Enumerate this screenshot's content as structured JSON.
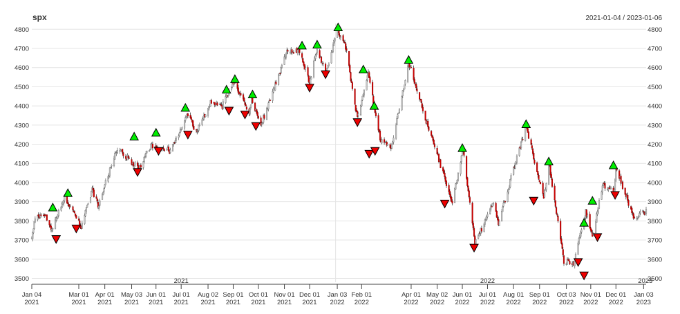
{
  "chart_data": {
    "type": "candlestick",
    "title": "spx",
    "date_range_label": "2021-01-04 / 2023-01-06",
    "ylim": [
      3480,
      4830
    ],
    "y_ticks": [
      3500,
      3600,
      3700,
      3800,
      3900,
      4000,
      4100,
      4200,
      4300,
      4400,
      4500,
      4600,
      4700,
      4800
    ],
    "y_tick_labels": [
      "3500",
      "3600",
      "3700",
      "3800",
      "3900",
      "4000",
      "4100",
      "4200",
      "4300",
      "4400",
      "4500",
      "4600",
      "4700",
      "4800"
    ],
    "x_range": [
      "2021-01-04",
      "2023-01-06"
    ],
    "x_ticks": [
      {
        "date": "2021-01-04",
        "line1": "Jan 04",
        "line2": "2021"
      },
      {
        "date": "2021-03-01",
        "line1": "Mar 01",
        "line2": "2021"
      },
      {
        "date": "2021-04-01",
        "line1": "Apr 01",
        "line2": "2021"
      },
      {
        "date": "2021-05-03",
        "line1": "May 03",
        "line2": "2021"
      },
      {
        "date": "2021-06-01",
        "line1": "Jun 01",
        "line2": "2021"
      },
      {
        "date": "2021-07-01",
        "line1": "Jul 01",
        "line2": "2021"
      },
      {
        "date": "2021-08-02",
        "line1": "Aug 02",
        "line2": "2021"
      },
      {
        "date": "2021-09-01",
        "line1": "Sep 01",
        "line2": "2021"
      },
      {
        "date": "2021-10-01",
        "line1": "Oct 01",
        "line2": "2021"
      },
      {
        "date": "2021-11-01",
        "line1": "Nov 01",
        "line2": "2021"
      },
      {
        "date": "2021-12-01",
        "line1": "Dec 01",
        "line2": "2021"
      },
      {
        "date": "2022-01-03",
        "line1": "Jan 03",
        "line2": "2022"
      },
      {
        "date": "2022-02-01",
        "line1": "Feb 01",
        "line2": "2022"
      },
      {
        "date": "2022-04-01",
        "line1": "Apr 01",
        "line2": "2022"
      },
      {
        "date": "2022-05-02",
        "line1": "May 02",
        "line2": "2022"
      },
      {
        "date": "2022-06-01",
        "line1": "Jun 01",
        "line2": "2022"
      },
      {
        "date": "2022-07-01",
        "line1": "Jul 01",
        "line2": "2022"
      },
      {
        "date": "2022-08-01",
        "line1": "Aug 01",
        "line2": "2022"
      },
      {
        "date": "2022-09-01",
        "line1": "Sep 01",
        "line2": "2022"
      },
      {
        "date": "2022-10-03",
        "line1": "Oct 03",
        "line2": "2022"
      },
      {
        "date": "2022-11-01",
        "line1": "Nov 01",
        "line2": "2022"
      },
      {
        "date": "2022-12-01",
        "line1": "Dec 01",
        "line2": "2022"
      },
      {
        "date": "2023-01-03",
        "line1": "Jan 03",
        "line2": "2023"
      }
    ],
    "year_labels": [
      {
        "date": "2021-07-01",
        "label": "2021"
      },
      {
        "date": "2022-07-01",
        "label": "2022"
      },
      {
        "date": "2023-01-05",
        "label": "2023"
      }
    ],
    "year_separator": "2022-01-01",
    "grid": true,
    "colors": {
      "up": "#c8c8c8",
      "down": "#cc0000",
      "flat": "#222222",
      "grid": "#e4e4e4",
      "buy": "#00ee00",
      "sell": "#ee0000",
      "marker_stroke": "#000000"
    },
    "anchors": [
      [
        "2021-01-04",
        3710
      ],
      [
        "2021-01-08",
        3810
      ],
      [
        "2021-01-20",
        3830
      ],
      [
        "2021-01-28",
        3750
      ],
      [
        "2021-02-12",
        3930
      ],
      [
        "2021-03-04",
        3770
      ],
      [
        "2021-03-17",
        3960
      ],
      [
        "2021-03-24",
        3880
      ],
      [
        "2021-04-16",
        4180
      ],
      [
        "2021-05-12",
        4070
      ],
      [
        "2021-05-25",
        4190
      ],
      [
        "2021-06-18",
        4165
      ],
      [
        "2021-07-09",
        4360
      ],
      [
        "2021-07-19",
        4260
      ],
      [
        "2021-08-05",
        4420
      ],
      [
        "2021-08-19",
        4400
      ],
      [
        "2021-09-02",
        4530
      ],
      [
        "2021-09-20",
        4360
      ],
      [
        "2021-09-23",
        4440
      ],
      [
        "2021-10-04",
        4300
      ],
      [
        "2021-11-04",
        4680
      ],
      [
        "2021-11-18",
        4690
      ],
      [
        "2021-12-01",
        4520
      ],
      [
        "2021-12-10",
        4700
      ],
      [
        "2021-12-20",
        4570
      ],
      [
        "2022-01-03",
        4795
      ],
      [
        "2022-01-12",
        4730
      ],
      [
        "2022-01-27",
        4330
      ],
      [
        "2022-02-09",
        4570
      ],
      [
        "2022-02-23",
        4230
      ],
      [
        "2022-03-08",
        4170
      ],
      [
        "2022-03-29",
        4630
      ],
      [
        "2022-04-14",
        4390
      ],
      [
        "2022-05-20",
        3900
      ],
      [
        "2022-06-02",
        4170
      ],
      [
        "2022-06-16",
        3680
      ],
      [
        "2022-07-08",
        3900
      ],
      [
        "2022-07-14",
        3790
      ],
      [
        "2022-08-16",
        4300
      ],
      [
        "2022-09-06",
        3910
      ],
      [
        "2022-09-12",
        4110
      ],
      [
        "2022-09-30",
        3590
      ],
      [
        "2022-10-12",
        3580
      ],
      [
        "2022-10-26",
        3850
      ],
      [
        "2022-11-03",
        3720
      ],
      [
        "2022-11-15",
        3990
      ],
      [
        "2022-11-29",
        3960
      ],
      [
        "2022-12-01",
        4080
      ],
      [
        "2022-12-22",
        3820
      ],
      [
        "2023-01-06",
        3850
      ]
    ],
    "buy_signals": [
      {
        "date": "2021-01-29",
        "value": 3870
      },
      {
        "date": "2021-02-16",
        "value": 3945
      },
      {
        "date": "2021-05-06",
        "value": 4240
      },
      {
        "date": "2021-06-01",
        "value": 4260
      },
      {
        "date": "2021-07-06",
        "value": 4390
      },
      {
        "date": "2021-08-24",
        "value": 4485
      },
      {
        "date": "2021-09-03",
        "value": 4540
      },
      {
        "date": "2021-09-24",
        "value": 4460
      },
      {
        "date": "2021-11-22",
        "value": 4715
      },
      {
        "date": "2021-12-10",
        "value": 4720
      },
      {
        "date": "2022-01-04",
        "value": 4810
      },
      {
        "date": "2022-02-03",
        "value": 4590
      },
      {
        "date": "2022-02-16",
        "value": 4400
      },
      {
        "date": "2022-03-29",
        "value": 4640
      },
      {
        "date": "2022-06-01",
        "value": 4180
      },
      {
        "date": "2022-08-16",
        "value": 4305
      },
      {
        "date": "2022-09-12",
        "value": 4110
      },
      {
        "date": "2022-10-24",
        "value": 3790
      },
      {
        "date": "2022-11-03",
        "value": 3905
      },
      {
        "date": "2022-11-28",
        "value": 4090
      }
    ],
    "sell_signals": [
      {
        "date": "2021-02-02",
        "value": 3705
      },
      {
        "date": "2021-02-26",
        "value": 3760
      },
      {
        "date": "2021-05-10",
        "value": 4055
      },
      {
        "date": "2021-06-04",
        "value": 4165
      },
      {
        "date": "2021-07-09",
        "value": 4250
      },
      {
        "date": "2021-08-27",
        "value": 4375
      },
      {
        "date": "2021-09-15",
        "value": 4355
      },
      {
        "date": "2021-09-28",
        "value": 4295
      },
      {
        "date": "2021-12-01",
        "value": 4495
      },
      {
        "date": "2021-12-20",
        "value": 4565
      },
      {
        "date": "2022-01-27",
        "value": 4315
      },
      {
        "date": "2022-02-10",
        "value": 4150
      },
      {
        "date": "2022-02-17",
        "value": 4165
      },
      {
        "date": "2022-05-11",
        "value": 3890
      },
      {
        "date": "2022-06-15",
        "value": 3660
      },
      {
        "date": "2022-08-25",
        "value": 3905
      },
      {
        "date": "2022-10-17",
        "value": 3585
      },
      {
        "date": "2022-10-24",
        "value": 3515
      },
      {
        "date": "2022-11-09",
        "value": 3715
      },
      {
        "date": "2022-11-30",
        "value": 3935
      }
    ]
  }
}
